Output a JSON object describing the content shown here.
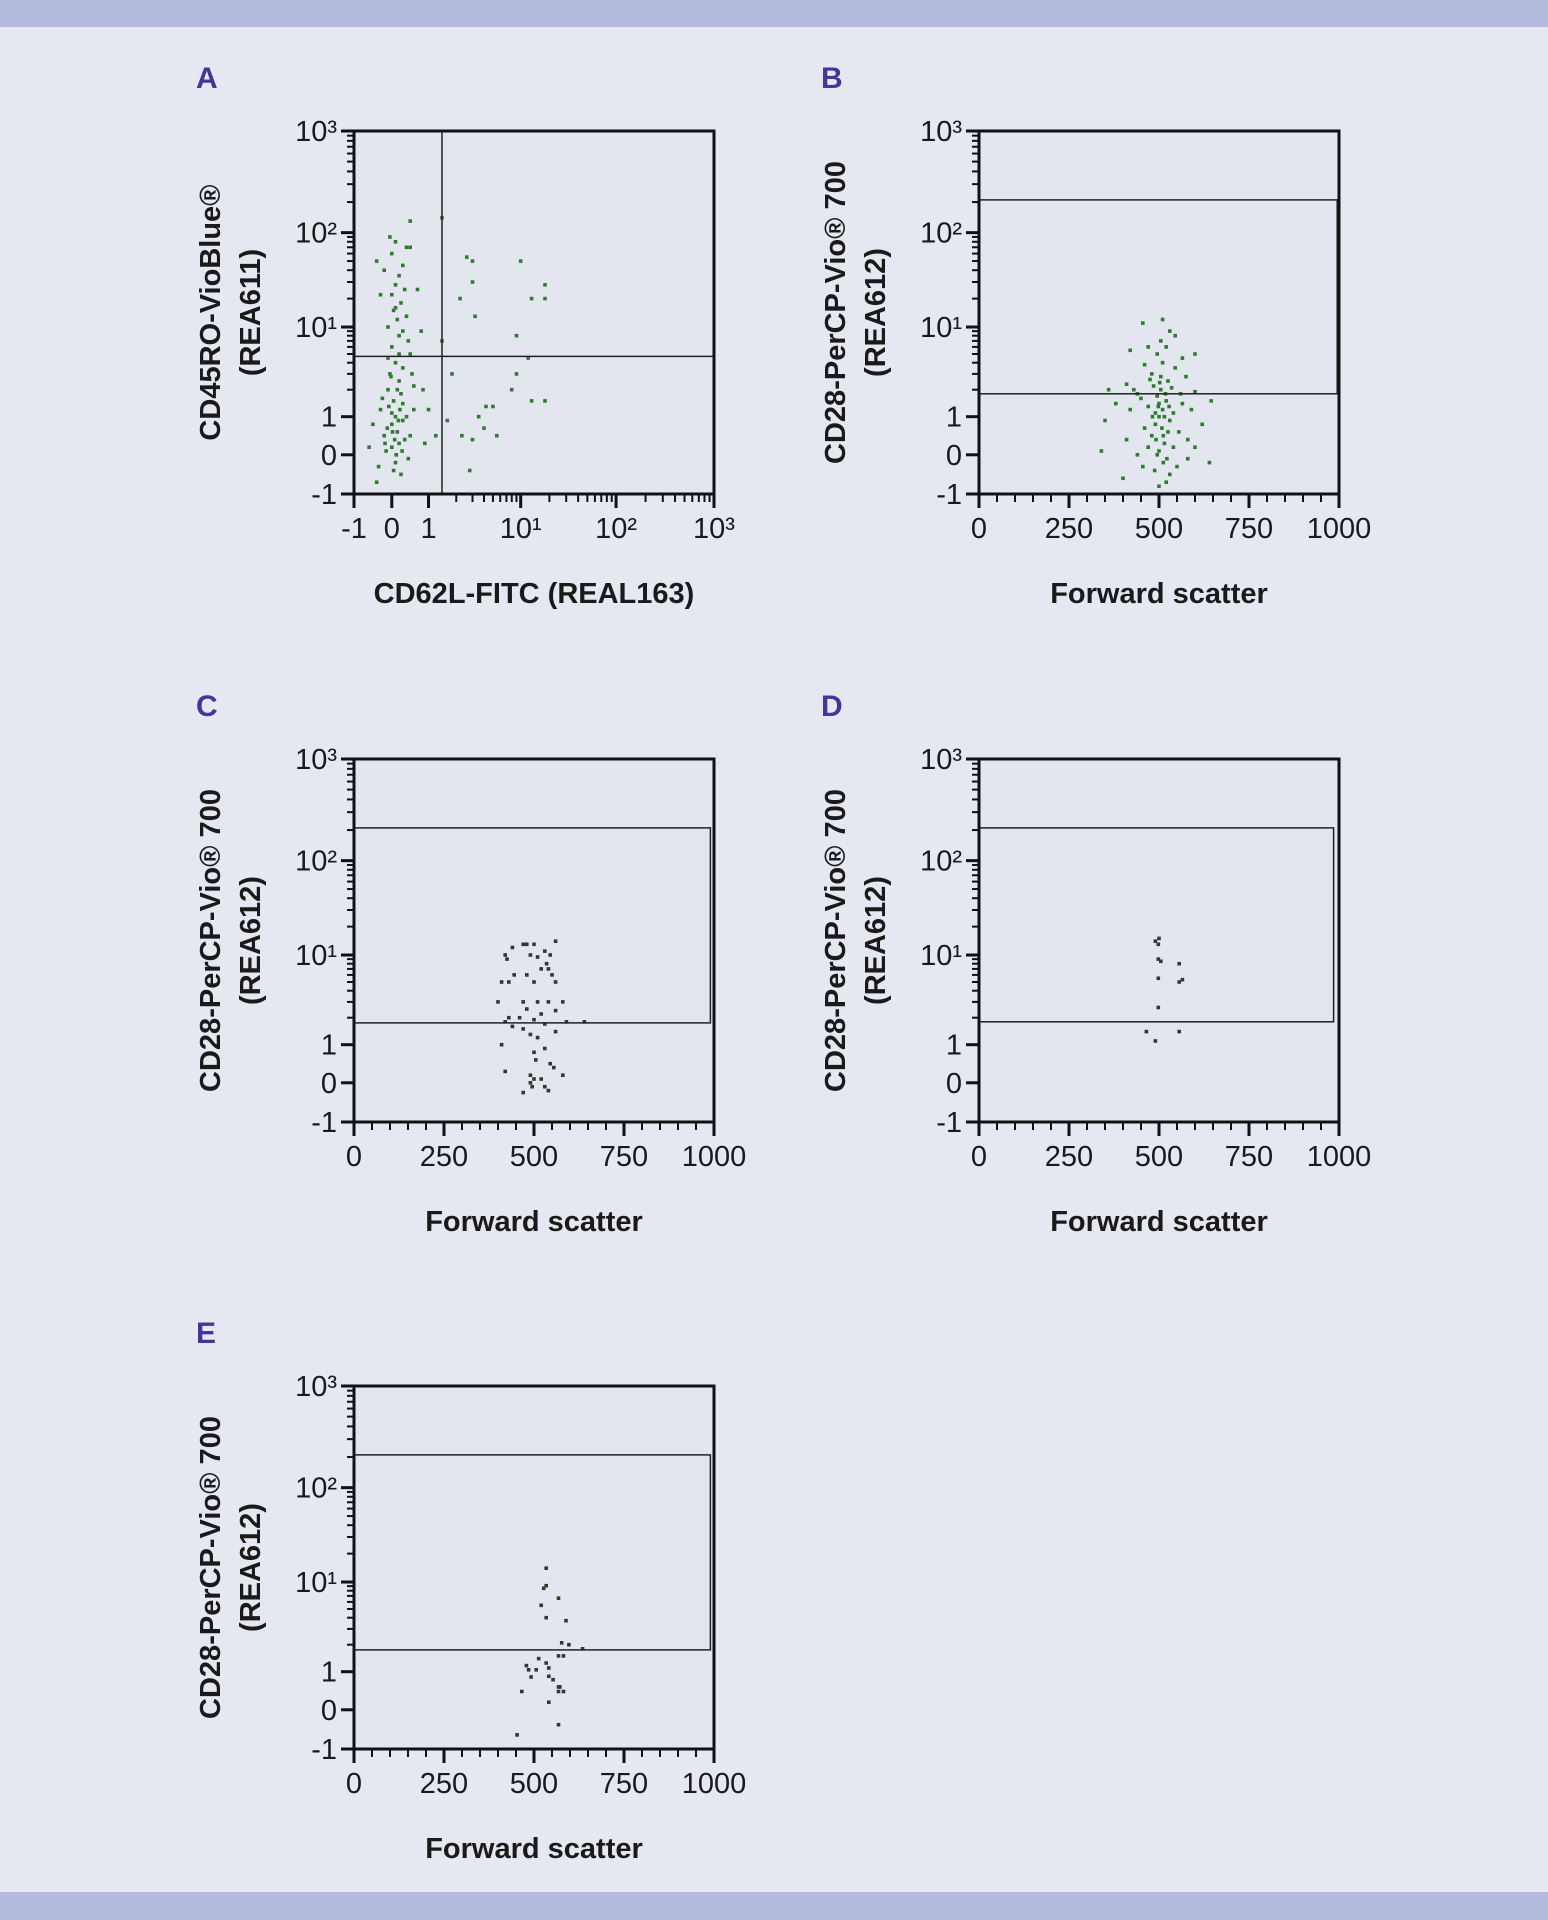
{
  "page": {
    "background": "#e5e7f1",
    "band_color": "#b4badd",
    "panel_label_color": "#3f3896",
    "dot_color": "#2e7d2e",
    "dot_color_sparse": "#2f3a2f"
  },
  "chart_data": [
    {
      "panel": "A",
      "type": "scatter",
      "xlabel": "CD62L-FITC (REAL163)",
      "ylabel": [
        "CD45RO-VioBlue®",
        "(REA611)"
      ],
      "x_scale": "biexponential",
      "y_scale": "biexponential",
      "xlim": [
        -1,
        1000
      ],
      "ylim": [
        -1,
        1000
      ],
      "xticks": [
        -1,
        0,
        1,
        10,
        100,
        1000
      ],
      "xtick_labels": [
        "-1",
        "0",
        "1",
        "10¹",
        "10²",
        "10³"
      ],
      "yticks": [
        -1,
        0,
        1,
        10,
        100,
        1000
      ],
      "ytick_labels": [
        "-1",
        "0",
        "1",
        "10¹",
        "10²",
        "10³"
      ],
      "gate": {
        "type": "quadrant",
        "x": 1.4,
        "y": 4.7
      },
      "points": [
        [
          0,
          0.8
        ],
        [
          0.1,
          1.0
        ],
        [
          -0.2,
          0.5
        ],
        [
          0.2,
          0.3
        ],
        [
          0.05,
          1.5
        ],
        [
          -0.1,
          2
        ],
        [
          0.3,
          0.9
        ],
        [
          0.15,
          0.6
        ],
        [
          -0.3,
          1.2
        ],
        [
          0.25,
          1.8
        ],
        [
          0.0,
          0.2
        ],
        [
          0.1,
          -0.2
        ],
        [
          -0.15,
          0.1
        ],
        [
          0.35,
          0.4
        ],
        [
          0.2,
          2.5
        ],
        [
          -0.05,
          3
        ],
        [
          0.1,
          4
        ],
        [
          0.3,
          3.5
        ],
        [
          0.0,
          6
        ],
        [
          0.2,
          8
        ],
        [
          -0.1,
          10
        ],
        [
          0.15,
          12
        ],
        [
          0.05,
          15
        ],
        [
          0.25,
          18
        ],
        [
          0.0,
          22
        ],
        [
          0.1,
          28
        ],
        [
          0.2,
          35
        ],
        [
          -0.2,
          40
        ],
        [
          0.3,
          45
        ],
        [
          0.0,
          60
        ],
        [
          0.1,
          80
        ],
        [
          -0.05,
          90
        ],
        [
          -0.4,
          50
        ],
        [
          0.4,
          70
        ],
        [
          0.5,
          70
        ],
        [
          -0.3,
          22
        ],
        [
          0.35,
          25
        ],
        [
          0.4,
          13
        ],
        [
          0.45,
          7
        ],
        [
          0.5,
          5
        ],
        [
          0.55,
          3
        ],
        [
          0.6,
          2.2
        ],
        [
          0.6,
          1.2
        ],
        [
          0.5,
          0.5
        ],
        [
          0.45,
          -0.1
        ],
        [
          -0.5,
          0.8
        ],
        [
          -0.6,
          0.2
        ],
        [
          -0.35,
          -0.3
        ],
        [
          -0.4,
          -0.7
        ],
        [
          0.25,
          -0.5
        ],
        [
          0.05,
          -0.4
        ],
        [
          0.3,
          1.4
        ],
        [
          -0.25,
          1.6
        ],
        [
          0.4,
          1.0
        ],
        [
          0.12,
          0.0
        ],
        [
          -0.12,
          0.7
        ],
        [
          0.2,
          5
        ],
        [
          -0.1,
          4.5
        ],
        [
          0.3,
          9
        ],
        [
          0.1,
          16
        ],
        [
          0.0,
          1.1
        ],
        [
          0.08,
          0.4
        ],
        [
          -0.08,
          1.3
        ],
        [
          0.18,
          0.9
        ],
        [
          0.22,
          1.2
        ],
        [
          -0.18,
          0.3
        ],
        [
          0.28,
          0.1
        ],
        [
          0.02,
          0.6
        ],
        [
          0.15,
          2.0
        ],
        [
          -0.02,
          2.8
        ],
        [
          0.7,
          25
        ],
        [
          0.8,
          9
        ],
        [
          0.85,
          2
        ],
        [
          1,
          1.2
        ],
        [
          0.9,
          0.3
        ],
        [
          1.2,
          0.5
        ],
        [
          1.4,
          140
        ],
        [
          0.5,
          130
        ],
        [
          1.4,
          7
        ],
        [
          1.6,
          0.9
        ],
        [
          1.8,
          3
        ],
        [
          2.2,
          20
        ],
        [
          2.3,
          0.5
        ],
        [
          2.6,
          55
        ],
        [
          3,
          50
        ],
        [
          3.2,
          13
        ],
        [
          3,
          30
        ],
        [
          3,
          0.4
        ],
        [
          2.8,
          -0.4
        ],
        [
          3.5,
          1
        ],
        [
          4,
          0.7
        ],
        [
          4.2,
          1.3
        ],
        [
          5,
          1.3
        ],
        [
          5.5,
          0.5
        ],
        [
          8,
          2
        ],
        [
          9,
          3
        ],
        [
          10,
          50
        ],
        [
          9,
          8
        ],
        [
          12,
          4.5
        ],
        [
          13,
          20
        ],
        [
          13,
          1.5
        ],
        [
          18,
          28
        ],
        [
          18,
          20
        ],
        [
          18,
          1.5
        ]
      ]
    },
    {
      "panel": "B",
      "type": "scatter",
      "xlabel": "Forward scatter",
      "ylabel": [
        "CD28-PerCP-Vio® 700",
        "(REA612)"
      ],
      "x_scale": "linear",
      "y_scale": "biexponential",
      "xlim": [
        0,
        1000
      ],
      "ylim": [
        -1,
        1000
      ],
      "xticks": [
        0,
        250,
        500,
        750,
        1000
      ],
      "xtick_labels": [
        "0",
        "250",
        "500",
        "750",
        "1000"
      ],
      "yticks": [
        -1,
        0,
        1,
        10,
        100,
        1000
      ],
      "ytick_labels": [
        "-1",
        "0",
        "1",
        "10¹",
        "10²",
        "10³"
      ],
      "gate": {
        "type": "rectangle",
        "x": [
          0,
          995
        ],
        "y": [
          1.8,
          210
        ]
      },
      "points": [
        [
          500,
          1
        ],
        [
          510,
          1.2
        ],
        [
          490,
          0.8
        ],
        [
          520,
          1.5
        ],
        [
          480,
          0.5
        ],
        [
          530,
          0.9
        ],
        [
          505,
          2
        ],
        [
          495,
          1.7
        ],
        [
          515,
          0.3
        ],
        [
          470,
          1.3
        ],
        [
          540,
          1.1
        ],
        [
          525,
          2.5
        ],
        [
          485,
          2.2
        ],
        [
          500,
          0.1
        ],
        [
          512,
          -0.2
        ],
        [
          488,
          -0.4
        ],
        [
          530,
          -0.5
        ],
        [
          555,
          0.6
        ],
        [
          460,
          0.7
        ],
        [
          450,
          1.6
        ],
        [
          560,
          1.8
        ],
        [
          575,
          2.8
        ],
        [
          545,
          3.5
        ],
        [
          510,
          4
        ],
        [
          495,
          5
        ],
        [
          520,
          6
        ],
        [
          505,
          7
        ],
        [
          480,
          3
        ],
        [
          460,
          3.8
        ],
        [
          430,
          2
        ],
        [
          420,
          1.2
        ],
        [
          410,
          0.4
        ],
        [
          440,
          0.0
        ],
        [
          380,
          1.4
        ],
        [
          360,
          2
        ],
        [
          350,
          0.9
        ],
        [
          340,
          0.1
        ],
        [
          400,
          -0.6
        ],
        [
          550,
          -0.3
        ],
        [
          580,
          0.4
        ],
        [
          590,
          1.2
        ],
        [
          600,
          1.9
        ],
        [
          620,
          0.8
        ],
        [
          640,
          -0.2
        ],
        [
          645,
          1.5
        ],
        [
          565,
          4.5
        ],
        [
          530,
          9
        ],
        [
          545,
          8
        ],
        [
          510,
          12
        ],
        [
          455,
          11
        ],
        [
          470,
          6
        ],
        [
          420,
          5.5
        ],
        [
          600,
          5
        ],
        [
          500,
          1.4
        ],
        [
          515,
          1.0
        ],
        [
          525,
          0.6
        ],
        [
          490,
          1.1
        ],
        [
          470,
          0.2
        ],
        [
          540,
          0.2
        ],
        [
          500,
          -0.8
        ],
        [
          520,
          -0.7
        ],
        [
          455,
          -0.3
        ],
        [
          580,
          -0.1
        ],
        [
          505,
          2.8
        ],
        [
          535,
          2.1
        ],
        [
          475,
          2.6
        ],
        [
          565,
          1.4
        ],
        [
          440,
          1.8
        ],
        [
          410,
          2.3
        ],
        [
          600,
          0.2
        ],
        [
          498,
          1.3
        ],
        [
          508,
          0.7
        ],
        [
          518,
          1.8
        ],
        [
          492,
          0.4
        ],
        [
          502,
          2.4
        ],
        [
          528,
          1.3
        ],
        [
          482,
          1.0
        ],
        [
          512,
          0.5
        ],
        [
          522,
          -0.1
        ],
        [
          495,
          0.0
        ]
      ]
    },
    {
      "panel": "C",
      "type": "scatter",
      "xlabel": "Forward scatter",
      "ylabel": [
        "CD28-PerCP-Vio® 700",
        "(REA612)"
      ],
      "x_scale": "linear",
      "y_scale": "biexponential",
      "xlim": [
        0,
        1000
      ],
      "ylim": [
        -1,
        1000
      ],
      "xticks": [
        0,
        250,
        500,
        750,
        1000
      ],
      "xtick_labels": [
        "0",
        "250",
        "500",
        "750",
        "1000"
      ],
      "yticks": [
        -1,
        0,
        1,
        10,
        100,
        1000
      ],
      "ytick_labels": [
        "-1",
        "0",
        "1",
        "10¹",
        "10²",
        "10³"
      ],
      "gate": {
        "type": "rectangle",
        "x": [
          0,
          990
        ],
        "y": [
          1.75,
          210
        ]
      },
      "points": [
        [
          560,
          14
        ],
        [
          470,
          13
        ],
        [
          480,
          13
        ],
        [
          500,
          13
        ],
        [
          440,
          12
        ],
        [
          420,
          10
        ],
        [
          425,
          9
        ],
        [
          490,
          10
        ],
        [
          510,
          9.5
        ],
        [
          530,
          11
        ],
        [
          545,
          10
        ],
        [
          535,
          8
        ],
        [
          540,
          7
        ],
        [
          550,
          6
        ],
        [
          520,
          7
        ],
        [
          560,
          5
        ],
        [
          500,
          5
        ],
        [
          480,
          6
        ],
        [
          410,
          5
        ],
        [
          430,
          5
        ],
        [
          445,
          6
        ],
        [
          400,
          3
        ],
        [
          470,
          3
        ],
        [
          510,
          3
        ],
        [
          540,
          3
        ],
        [
          580,
          3
        ],
        [
          480,
          2.5
        ],
        [
          520,
          2.2
        ],
        [
          560,
          2.4
        ],
        [
          430,
          2
        ],
        [
          460,
          2
        ],
        [
          420,
          1.8
        ],
        [
          440,
          1.6
        ],
        [
          500,
          1.9
        ],
        [
          530,
          1.7
        ],
        [
          590,
          1.8
        ],
        [
          640,
          1.8
        ],
        [
          470,
          1.5
        ],
        [
          490,
          1.3
        ],
        [
          510,
          1.2
        ],
        [
          560,
          1.4
        ],
        [
          410,
          1.0
        ],
        [
          500,
          0.8
        ],
        [
          530,
          0.9
        ],
        [
          505,
          0.6
        ],
        [
          545,
          0.5
        ],
        [
          555,
          0.4
        ],
        [
          580,
          0.2
        ],
        [
          420,
          0.3
        ],
        [
          520,
          0.1
        ],
        [
          490,
          0.0
        ],
        [
          500,
          0.1
        ],
        [
          495,
          -0.1
        ],
        [
          540,
          -0.2
        ],
        [
          530,
          -0.1
        ],
        [
          470,
          -0.25
        ],
        [
          490,
          0.2
        ]
      ]
    },
    {
      "panel": "D",
      "type": "scatter",
      "xlabel": "Forward scatter",
      "ylabel": [
        "CD28-PerCP-Vio® 700",
        "(REA612)"
      ],
      "x_scale": "linear",
      "y_scale": "biexponential",
      "xlim": [
        0,
        1000
      ],
      "ylim": [
        -1,
        1000
      ],
      "xticks": [
        0,
        250,
        500,
        750,
        1000
      ],
      "xtick_labels": [
        "0",
        "250",
        "500",
        "750",
        "1000"
      ],
      "yticks": [
        -1,
        0,
        1,
        10,
        100,
        1000
      ],
      "ytick_labels": [
        "-1",
        "0",
        "1",
        "10¹",
        "10²",
        "10³"
      ],
      "gate": {
        "type": "rectangle",
        "x": [
          0,
          985
        ],
        "y": [
          1.8,
          210
        ]
      },
      "points": [
        [
          490,
          14
        ],
        [
          500,
          15
        ],
        [
          498,
          13
        ],
        [
          498,
          9
        ],
        [
          505,
          8.5
        ],
        [
          498,
          5.5
        ],
        [
          556,
          8
        ],
        [
          556,
          5
        ],
        [
          565,
          5.3
        ],
        [
          498,
          2.6
        ],
        [
          465,
          1.4
        ],
        [
          556,
          1.4
        ],
        [
          490,
          1.1
        ]
      ]
    },
    {
      "panel": "E",
      "type": "scatter",
      "xlabel": "Forward scatter",
      "ylabel": [
        "CD28-PerCP-Vio® 700",
        "(REA612)"
      ],
      "x_scale": "linear",
      "y_scale": "biexponential",
      "xlim": [
        0,
        1000
      ],
      "ylim": [
        -1,
        1000
      ],
      "xticks": [
        0,
        250,
        500,
        750,
        1000
      ],
      "xtick_labels": [
        "0",
        "250",
        "500",
        "750",
        "1000"
      ],
      "yticks": [
        -1,
        0,
        1,
        10,
        100,
        1000
      ],
      "ytick_labels": [
        "-1",
        "0",
        "1",
        "10¹",
        "10²",
        "10³"
      ],
      "gate": {
        "type": "rectangle",
        "x": [
          0,
          990
        ],
        "y": [
          1.75,
          210
        ]
      },
      "points": [
        [
          534,
          14
        ],
        [
          534,
          9.1
        ],
        [
          527,
          8.5
        ],
        [
          568,
          6.6
        ],
        [
          520,
          5.5
        ],
        [
          534,
          4.0
        ],
        [
          589,
          3.7
        ],
        [
          577,
          2.1
        ],
        [
          597,
          2.0
        ],
        [
          635,
          1.8
        ],
        [
          568,
          1.5
        ],
        [
          582,
          1.5
        ],
        [
          513,
          1.4
        ],
        [
          534,
          1.25
        ],
        [
          479,
          1.17
        ],
        [
          485,
          1.05
        ],
        [
          506,
          1.05
        ],
        [
          541,
          1.1
        ],
        [
          492,
          0.86
        ],
        [
          541,
          0.88
        ],
        [
          553,
          0.79
        ],
        [
          568,
          0.6
        ],
        [
          572,
          0.6
        ],
        [
          466,
          0.48
        ],
        [
          568,
          0.48
        ],
        [
          582,
          0.48
        ],
        [
          541,
          0.2
        ],
        [
          568,
          -0.38
        ],
        [
          453,
          -0.64
        ]
      ]
    }
  ]
}
